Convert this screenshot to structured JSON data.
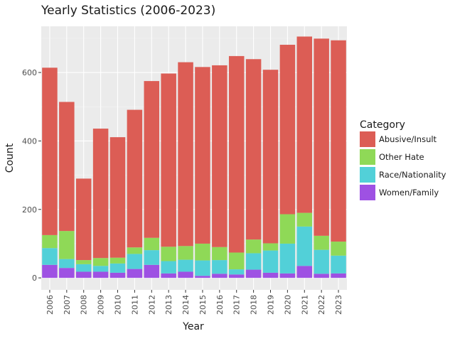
{
  "chart_data": {
    "type": "bar",
    "stacked": true,
    "title": "Yearly Statistics (2006-2023)",
    "xlabel": "Year",
    "ylabel": "Count",
    "ylim": [
      -35,
      735
    ],
    "yticks": [
      0,
      200,
      400,
      600
    ],
    "grid": true,
    "legend": {
      "title": "Category",
      "position": "right"
    },
    "categories": [
      "2006",
      "2007",
      "2008",
      "2009",
      "2010",
      "2011",
      "2012",
      "2013",
      "2014",
      "2015",
      "2016",
      "2017",
      "2018",
      "2019",
      "2020",
      "2021",
      "2022",
      "2023"
    ],
    "series": [
      {
        "name": "Women/Family",
        "color": "#9e51e3",
        "values": [
          38,
          29,
          18,
          18,
          15,
          26,
          38,
          13,
          18,
          6,
          12,
          10,
          24,
          15,
          13,
          35,
          12,
          13
        ]
      },
      {
        "name": "Race/Nationality",
        "color": "#52d0d8",
        "values": [
          49,
          26,
          22,
          17,
          27,
          44,
          43,
          36,
          35,
          45,
          40,
          15,
          48,
          65,
          87,
          115,
          70,
          52
        ]
      },
      {
        "name": "Other Hate",
        "color": "#8fd957",
        "values": [
          38,
          82,
          12,
          23,
          17,
          19,
          36,
          42,
          40,
          49,
          38,
          49,
          40,
          21,
          86,
          40,
          41,
          41
        ]
      },
      {
        "name": "Abusive/Insult",
        "color": "#dc5d55",
        "values": [
          489,
          377,
          238,
          378,
          352,
          402,
          458,
          506,
          537,
          516,
          531,
          574,
          527,
          507,
          495,
          515,
          576,
          588
        ]
      }
    ]
  }
}
